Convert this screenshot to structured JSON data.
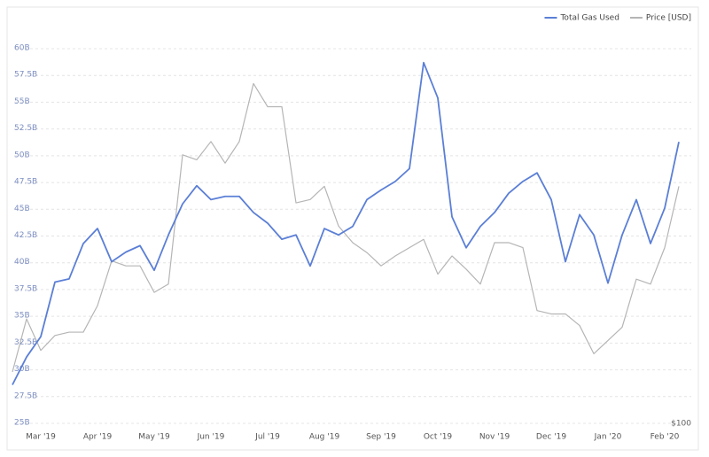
{
  "chart_data": {
    "type": "line",
    "categories": [
      null,
      null,
      "Mar '19",
      null,
      null,
      null,
      "Apr '19",
      null,
      null,
      null,
      "May '19",
      null,
      null,
      null,
      "Jun '19",
      null,
      null,
      null,
      "Jul '19",
      null,
      null,
      null,
      "Aug '19",
      null,
      null,
      null,
      "Sep '19",
      null,
      null,
      null,
      "Oct '19",
      null,
      null,
      null,
      "Nov '19",
      null,
      null,
      null,
      "Dec '19",
      null,
      null,
      null,
      "Jan '20",
      null,
      null,
      null,
      "Feb '20",
      null
    ],
    "series": [
      {
        "name": "Total Gas Used",
        "color": "#5b7fd6",
        "values": [
          28.6,
          31.2,
          33.1,
          38.2,
          38.5,
          41.8,
          43.2,
          40.1,
          41,
          41.6,
          39.3,
          42.6,
          45.5,
          47.2,
          45.9,
          46.2,
          46.2,
          44.7,
          43.7,
          42.2,
          42.6,
          39.7,
          43.2,
          42.6,
          43.4,
          45.9,
          46.8,
          47.6,
          48.8,
          58.7,
          55.4,
          44.3,
          41.4,
          43.4,
          44.7,
          46.5,
          47.6,
          48.4,
          45.9,
          40.1,
          44.5,
          42.6,
          38.1,
          42.6,
          45.9,
          41.8,
          45.1,
          51.3
        ]
      },
      {
        "name": "Price [USD]",
        "color": "#b5b5b5",
        "axis": "y2",
        "values": [
          131,
          163,
          144,
          153,
          155,
          155,
          171,
          198,
          195,
          195,
          179,
          184,
          262,
          259,
          270,
          257,
          270,
          305,
          291,
          291,
          233,
          235,
          243,
          219,
          209,
          203,
          195,
          201,
          206,
          211,
          190,
          201,
          193,
          184,
          209,
          209,
          206,
          168,
          166,
          166,
          159,
          142,
          150,
          158,
          187,
          184,
          206,
          243
        ]
      }
    ],
    "ylim": [
      25,
      60
    ],
    "yticks": [
      {
        "value": 25,
        "label": "25B"
      },
      {
        "value": 27.5,
        "label": "27.5B"
      },
      {
        "value": 30,
        "label": "30B"
      },
      {
        "value": 32.5,
        "label": "32.5B"
      },
      {
        "value": 35,
        "label": "35B"
      },
      {
        "value": 37.5,
        "label": "37.5B"
      },
      {
        "value": 40,
        "label": "40B"
      },
      {
        "value": 42.5,
        "label": "42.5B"
      },
      {
        "value": 45,
        "label": "45B"
      },
      {
        "value": 47.5,
        "label": "47.5B"
      },
      {
        "value": 50,
        "label": "50B"
      },
      {
        "value": 52.5,
        "label": "52.5B"
      },
      {
        "value": 55,
        "label": "55B"
      },
      {
        "value": 57.5,
        "label": "57.5B"
      },
      {
        "value": 60,
        "label": "60B"
      }
    ],
    "y2lim": [
      100,
      326
    ],
    "y2ticks": [
      {
        "value": 100,
        "label": "$100"
      }
    ],
    "grid": true,
    "legend": "top-right"
  }
}
